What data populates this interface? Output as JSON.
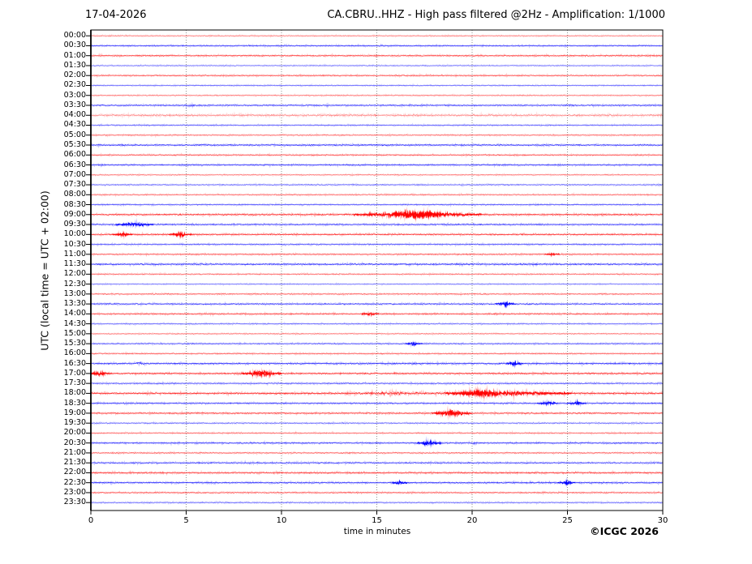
{
  "header": {
    "date": "17-04-2026",
    "title": "CA.CBRU..HHZ - High pass filtered @2Hz - Amplification: 1/1000"
  },
  "footer": {
    "copyright": "©ICGC 2026"
  },
  "chart_data": {
    "type": "line",
    "subtype": "helicorder-seismogram",
    "station": "CA.CBRU..HHZ",
    "filter": "High pass filtered @2Hz",
    "amplification": "1/1000",
    "title": "CA.CBRU..HHZ - High pass filtered @2Hz - Amplification: 1/1000",
    "date": "17-04-2026",
    "xlabel": "time in minutes",
    "ylabel": "UTC (local time = UTC + 02:00)",
    "xlim": [
      0,
      30
    ],
    "x_ticks": [
      "0",
      "5",
      "10",
      "15",
      "20",
      "25",
      "30"
    ],
    "grid_minutes": [
      5,
      10,
      15,
      20,
      25
    ],
    "minutes_per_row": 30,
    "grid_on": true,
    "colors": {
      "red": "#ff0000",
      "blue": "#0000ff",
      "grid": "#777777",
      "frame": "#000000"
    },
    "rows": [
      {
        "label": "00:00",
        "color": "red",
        "shade": 0.5,
        "noise": 0.7,
        "events": []
      },
      {
        "label": "00:30",
        "color": "blue",
        "shade": 0.8,
        "noise": 0.8,
        "events": []
      },
      {
        "label": "01:00",
        "color": "red",
        "shade": 0.75,
        "noise": 0.9,
        "events": []
      },
      {
        "label": "01:30",
        "color": "blue",
        "shade": 0.55,
        "noise": 0.7,
        "events": []
      },
      {
        "label": "02:00",
        "color": "red",
        "shade": 0.7,
        "noise": 0.8,
        "events": []
      },
      {
        "label": "02:30",
        "color": "blue",
        "shade": 0.6,
        "noise": 0.7,
        "events": []
      },
      {
        "label": "03:00",
        "color": "red",
        "shade": 0.55,
        "noise": 0.7,
        "events": []
      },
      {
        "label": "03:30",
        "color": "blue",
        "shade": 0.8,
        "noise": 0.9,
        "events": [
          {
            "s": 4.8,
            "e": 5.6,
            "a": 1.3
          },
          {
            "s": 24.8,
            "e": 25.3,
            "a": 1.2
          }
        ]
      },
      {
        "label": "04:00",
        "color": "red",
        "shade": 0.45,
        "noise": 1.3,
        "events": []
      },
      {
        "label": "04:30",
        "color": "blue",
        "shade": 0.65,
        "noise": 0.8,
        "events": []
      },
      {
        "label": "05:00",
        "color": "red",
        "shade": 0.6,
        "noise": 0.8,
        "events": []
      },
      {
        "label": "05:30",
        "color": "blue",
        "shade": 0.85,
        "noise": 0.9,
        "events": []
      },
      {
        "label": "06:00",
        "color": "red",
        "shade": 0.7,
        "noise": 0.8,
        "events": []
      },
      {
        "label": "06:30",
        "color": "blue",
        "shade": 0.8,
        "noise": 0.9,
        "events": []
      },
      {
        "label": "07:00",
        "color": "red",
        "shade": 0.55,
        "noise": 0.7,
        "events": []
      },
      {
        "label": "07:30",
        "color": "blue",
        "shade": 0.6,
        "noise": 0.8,
        "events": []
      },
      {
        "label": "08:00",
        "color": "red",
        "shade": 0.6,
        "noise": 0.8,
        "events": []
      },
      {
        "label": "08:30",
        "color": "blue",
        "shade": 0.7,
        "noise": 0.8,
        "events": []
      },
      {
        "label": "09:00",
        "color": "red",
        "shade": 0.85,
        "noise": 1.0,
        "events": [
          {
            "s": 14.0,
            "e": 20.3,
            "a": 2.2
          },
          {
            "s": 16.0,
            "e": 18.3,
            "a": 1.5
          }
        ]
      },
      {
        "label": "09:30",
        "color": "blue",
        "shade": 0.8,
        "noise": 0.9,
        "events": [
          {
            "s": 1.5,
            "e": 3.1,
            "a": 1.6
          }
        ]
      },
      {
        "label": "10:00",
        "color": "red",
        "shade": 0.85,
        "noise": 0.9,
        "events": [
          {
            "s": 1.3,
            "e": 2.0,
            "a": 2.0
          },
          {
            "s": 4.3,
            "e": 5.1,
            "a": 1.8
          }
        ]
      },
      {
        "label": "10:30",
        "color": "blue",
        "shade": 0.7,
        "noise": 0.9,
        "events": []
      },
      {
        "label": "11:00",
        "color": "red",
        "shade": 0.7,
        "noise": 0.8,
        "events": [
          {
            "s": 24.0,
            "e": 24.4,
            "a": 1.4
          }
        ]
      },
      {
        "label": "11:30",
        "color": "blue",
        "shade": 0.85,
        "noise": 1.0,
        "events": []
      },
      {
        "label": "12:00",
        "color": "red",
        "shade": 0.6,
        "noise": 0.8,
        "events": []
      },
      {
        "label": "12:30",
        "color": "blue",
        "shade": 0.55,
        "noise": 0.7,
        "events": []
      },
      {
        "label": "13:00",
        "color": "red",
        "shade": 0.65,
        "noise": 0.8,
        "events": []
      },
      {
        "label": "13:30",
        "color": "blue",
        "shade": 0.8,
        "noise": 0.9,
        "events": [
          {
            "s": 21.4,
            "e": 22.1,
            "a": 2.0
          }
        ]
      },
      {
        "label": "14:00",
        "color": "red",
        "shade": 0.75,
        "noise": 0.9,
        "events": [
          {
            "s": 14.4,
            "e": 14.9,
            "a": 1.5
          },
          {
            "s": 21.1,
            "e": 21.4,
            "a": 1.2
          }
        ]
      },
      {
        "label": "14:30",
        "color": "blue",
        "shade": 0.6,
        "noise": 0.8,
        "events": []
      },
      {
        "label": "15:00",
        "color": "red",
        "shade": 0.55,
        "noise": 0.7,
        "events": []
      },
      {
        "label": "15:30",
        "color": "blue",
        "shade": 0.7,
        "noise": 0.8,
        "events": [
          {
            "s": 16.7,
            "e": 17.2,
            "a": 2.0
          }
        ]
      },
      {
        "label": "16:00",
        "color": "red",
        "shade": 0.65,
        "noise": 0.8,
        "events": []
      },
      {
        "label": "16:30",
        "color": "blue",
        "shade": 0.85,
        "noise": 1.0,
        "events": [
          {
            "s": 22.0,
            "e": 22.5,
            "a": 2.4
          },
          {
            "s": 2.2,
            "e": 2.9,
            "a": 1.2
          }
        ]
      },
      {
        "label": "17:00",
        "color": "red",
        "shade": 0.9,
        "noise": 0.9,
        "events": [
          {
            "s": 0.0,
            "e": 0.9,
            "a": 2.0
          },
          {
            "s": 8.1,
            "e": 9.8,
            "a": 3.2
          }
        ]
      },
      {
        "label": "17:30",
        "color": "blue",
        "shade": 0.7,
        "noise": 0.9,
        "events": []
      },
      {
        "label": "18:00",
        "color": "red",
        "shade": 0.9,
        "noise": 1.1,
        "events": [
          {
            "s": 18.8,
            "e": 25.0,
            "a": 1.8
          },
          {
            "s": 19.5,
            "e": 21.2,
            "a": 1.6
          },
          {
            "s": 13.0,
            "e": 18.8,
            "a": 1.0
          }
        ]
      },
      {
        "label": "18:30",
        "color": "blue",
        "shade": 0.8,
        "noise": 0.9,
        "events": [
          {
            "s": 23.6,
            "e": 24.3,
            "a": 1.6
          },
          {
            "s": 25.2,
            "e": 25.8,
            "a": 1.6
          }
        ]
      },
      {
        "label": "19:00",
        "color": "red",
        "shade": 0.8,
        "noise": 0.9,
        "events": [
          {
            "s": 18.1,
            "e": 19.8,
            "a": 2.6
          }
        ]
      },
      {
        "label": "19:30",
        "color": "blue",
        "shade": 0.6,
        "noise": 0.8,
        "events": []
      },
      {
        "label": "20:00",
        "color": "red",
        "shade": 0.6,
        "noise": 0.8,
        "events": []
      },
      {
        "label": "20:30",
        "color": "blue",
        "shade": 0.8,
        "noise": 0.9,
        "events": [
          {
            "s": 17.3,
            "e": 18.2,
            "a": 2.4
          },
          {
            "s": 20.0,
            "e": 20.3,
            "a": 1.3
          }
        ]
      },
      {
        "label": "21:00",
        "color": "red",
        "shade": 0.65,
        "noise": 0.8,
        "events": []
      },
      {
        "label": "21:30",
        "color": "blue",
        "shade": 0.75,
        "noise": 1.0,
        "events": []
      },
      {
        "label": "22:00",
        "color": "red",
        "shade": 0.8,
        "noise": 1.0,
        "events": []
      },
      {
        "label": "22:30",
        "color": "blue",
        "shade": 0.85,
        "noise": 0.9,
        "events": [
          {
            "s": 16.0,
            "e": 16.4,
            "a": 1.8
          },
          {
            "s": 24.7,
            "e": 25.2,
            "a": 2.0
          }
        ]
      },
      {
        "label": "23:00",
        "color": "red",
        "shade": 0.7,
        "noise": 0.8,
        "events": []
      },
      {
        "label": "23:30",
        "color": "blue",
        "shade": 0.6,
        "noise": 0.8,
        "events": []
      }
    ]
  },
  "layout_hint": {
    "legend": "none",
    "trace_color_cycle": [
      "red",
      "blue"
    ]
  }
}
